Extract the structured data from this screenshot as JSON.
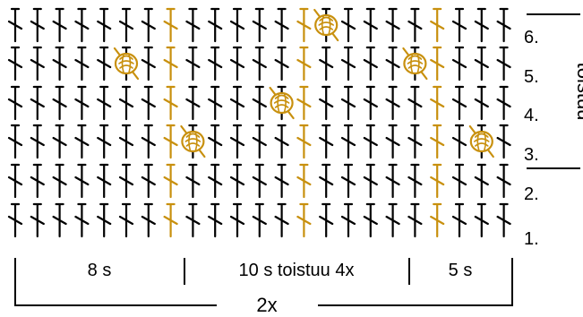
{
  "diagram": {
    "colors": {
      "black_stitch": "#000000",
      "accent_stitch": "#c8900e",
      "text": "#000000"
    },
    "grid": {
      "rows": 6,
      "columns": 23,
      "accent_columns": [
        8,
        14,
        20
      ]
    },
    "stitches": {
      "normal_symbol": "single-crochet-symbol",
      "bobble_symbol": "bobble-stitch-symbol"
    },
    "row_labels": [
      "1.",
      "2.",
      "3.",
      "4.",
      "5.",
      "6."
    ],
    "repeat_label": "toistuu",
    "sections": {
      "left": "8 s",
      "middle": "10 s toistuu 4x",
      "right": "5 s"
    },
    "multiplier": "2x",
    "bobbles": [
      {
        "row": 6,
        "column": 15
      },
      {
        "row": 5,
        "column": 6
      },
      {
        "row": 5,
        "column": 19
      },
      {
        "row": 4,
        "column": 13
      },
      {
        "row": 3,
        "column": 9
      },
      {
        "row": 3,
        "column": 22
      }
    ]
  }
}
